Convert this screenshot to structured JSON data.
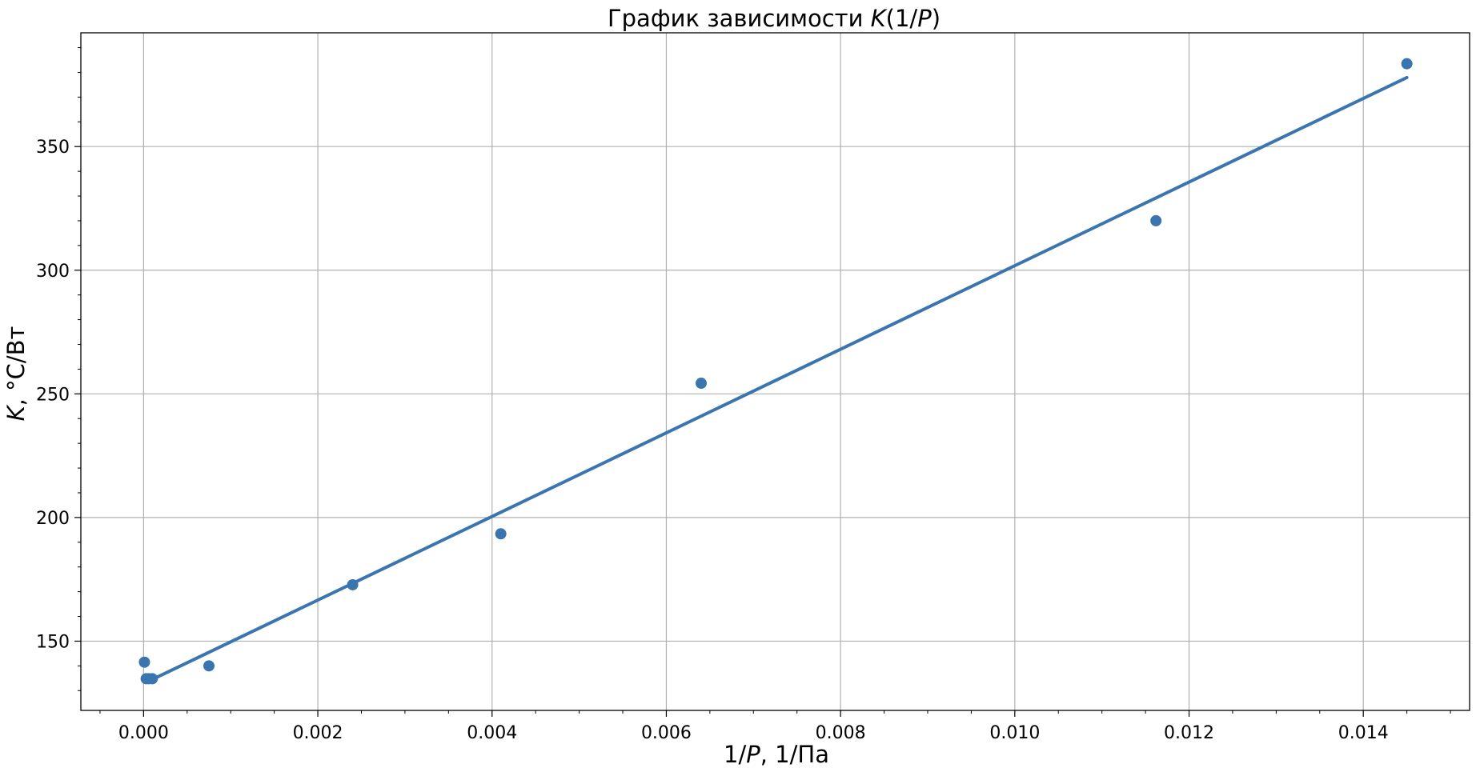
{
  "chart_data": {
    "type": "scatter",
    "title": {
      "prefix": "График зависимости ",
      "italic_K": "K",
      "suffix_open": "(1/",
      "italic_P": "P",
      "suffix_close": ")"
    },
    "xlabel": {
      "prefix": "1/",
      "italic_P": "P",
      "suffix": ",  1/Па"
    },
    "ylabel": {
      "italic_K": "K",
      "suffix": ",  °C/Вт"
    },
    "xlim": [
      -0.00072,
      0.01522
    ],
    "ylim": [
      122,
      396
    ],
    "xticks": [
      0.0,
      0.002,
      0.004,
      0.006,
      0.008,
      0.01,
      0.012,
      0.014
    ],
    "xtick_labels": [
      "0.000",
      "0.002",
      "0.004",
      "0.006",
      "0.008",
      "0.010",
      "0.012",
      "0.014"
    ],
    "yticks": [
      150,
      200,
      250,
      300,
      350
    ],
    "ytick_labels": [
      "150",
      "200",
      "250",
      "300",
      "350"
    ],
    "grid": true,
    "color": "#3a75b0",
    "series": [
      {
        "kind": "points",
        "x": [
          1e-05,
          3e-05,
          6e-05,
          0.0001,
          0.00075,
          0.0024,
          0.0041,
          0.0064,
          0.01162,
          0.0145
        ],
        "y": [
          141.5,
          134.8,
          134.8,
          134.8,
          140,
          172.8,
          193.4,
          254.3,
          320,
          383.5
        ]
      },
      {
        "kind": "fit-line",
        "x": [
          0.0001,
          0.0145
        ],
        "y": [
          134.5,
          377.9
        ]
      }
    ]
  }
}
